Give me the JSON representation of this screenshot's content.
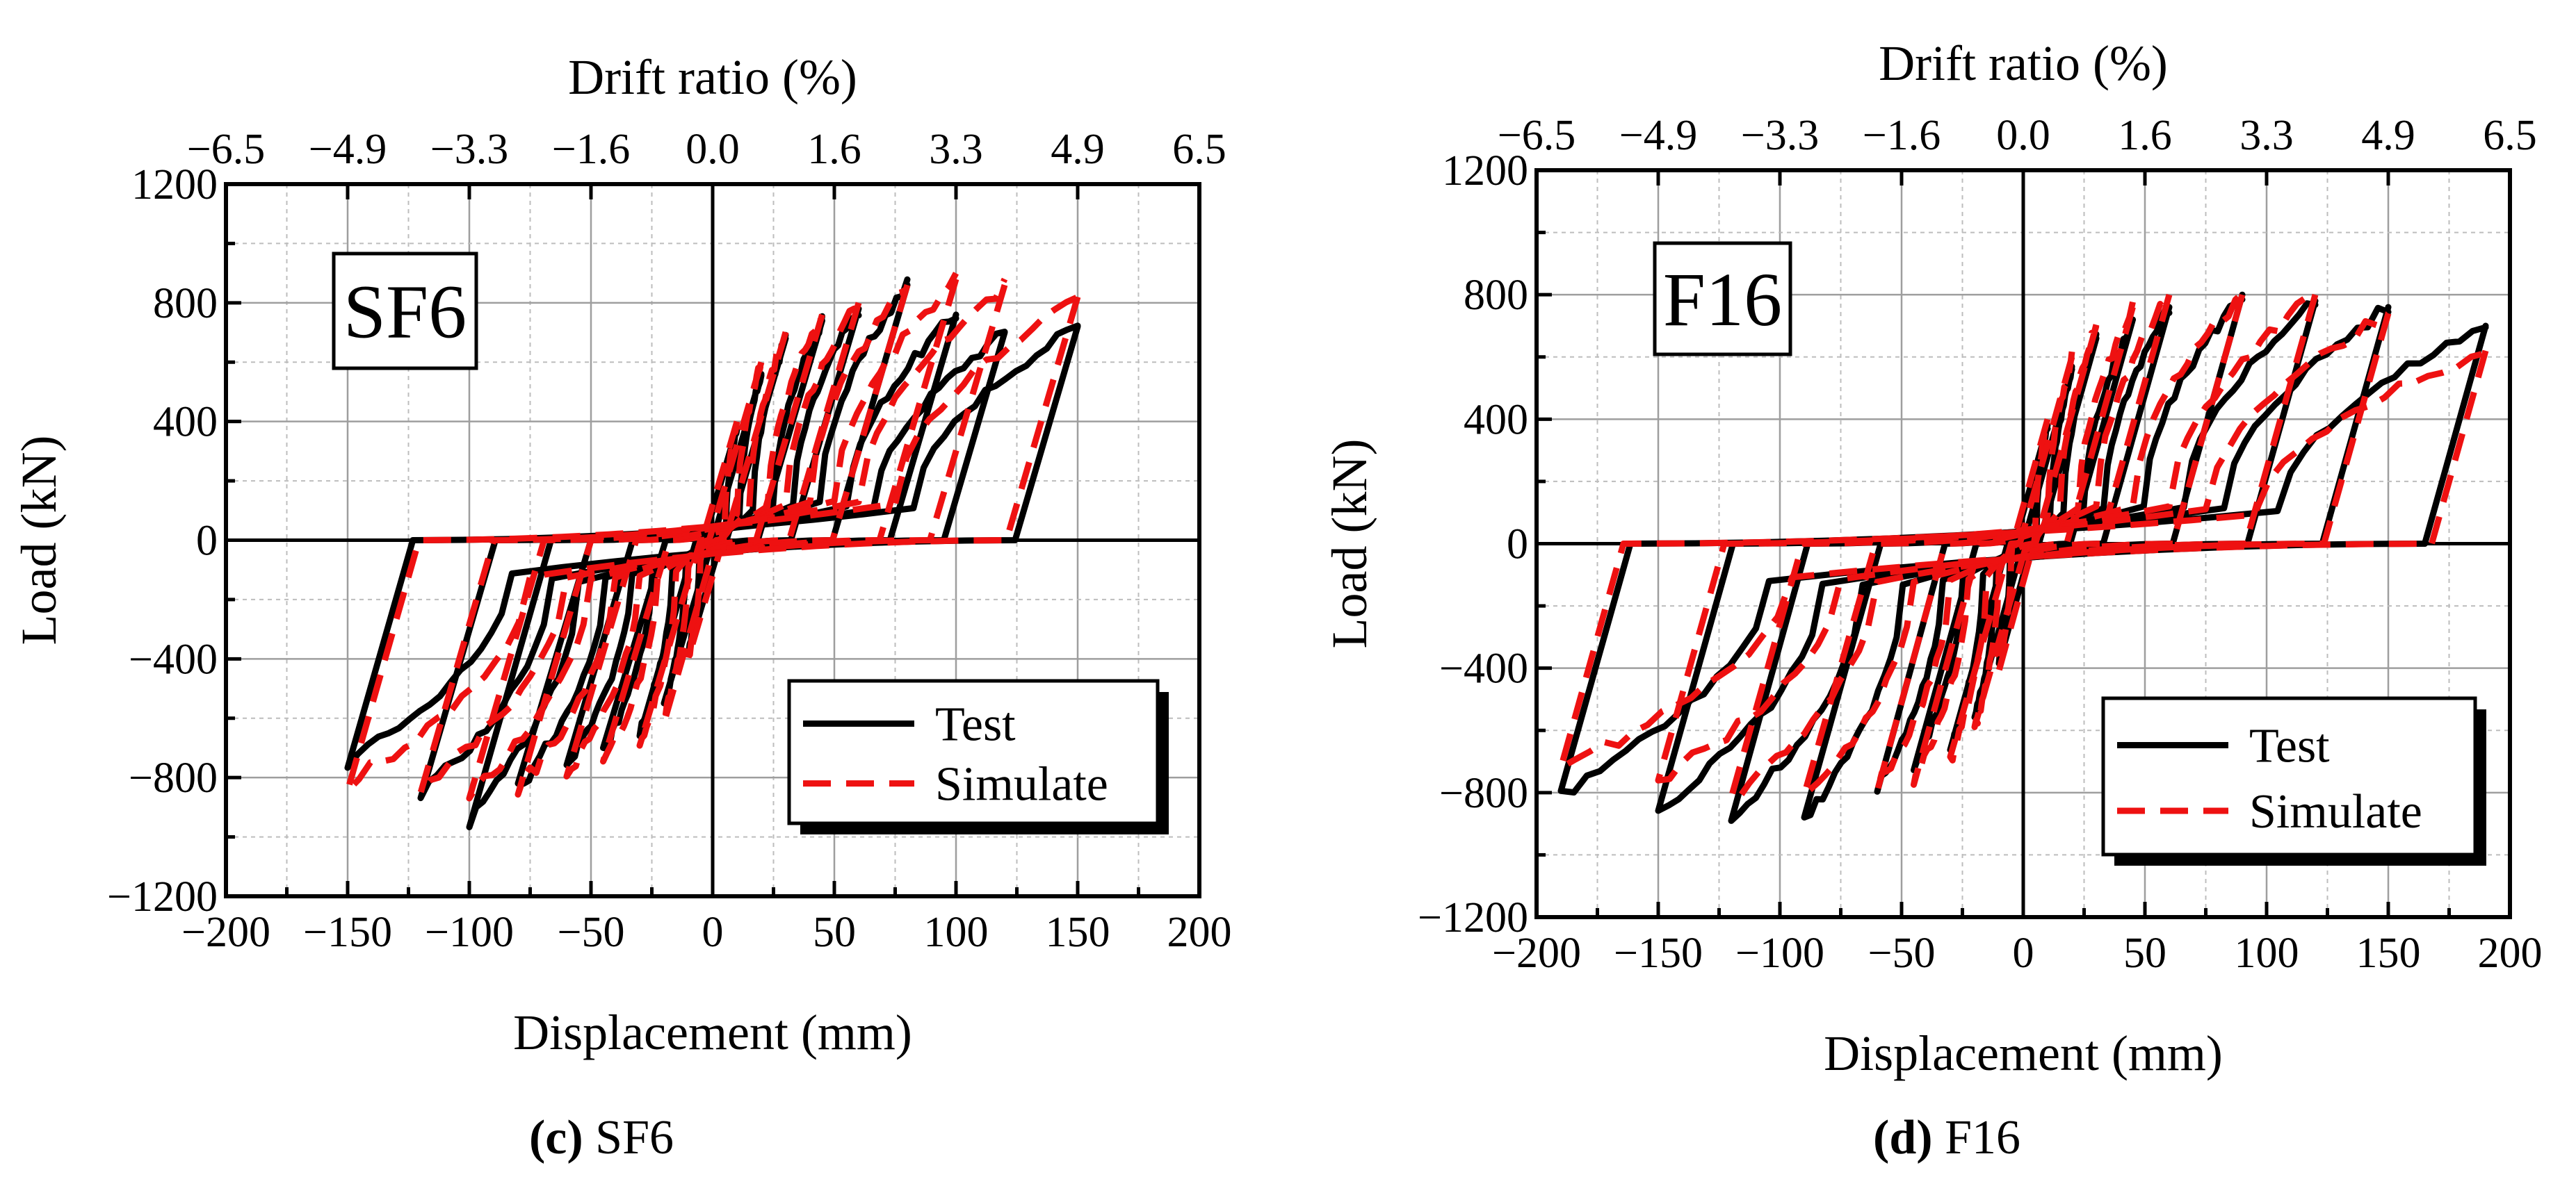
{
  "chart_data": [
    {
      "type": "line",
      "panel_letter": "c",
      "caption": " SF6",
      "tag": "SF6",
      "xlabel": "Displacement (mm)",
      "ylabel": "Load (kN)",
      "top_xlabel": "Drift ratio (%)",
      "xlim": [
        -200,
        200
      ],
      "ylim": [
        -1200,
        1200
      ],
      "xticks": [
        "−200",
        "−150",
        "−100",
        "−50",
        "0",
        "50",
        "100",
        "150",
        "200"
      ],
      "yticks": [
        "−1200",
        "−800",
        "−400",
        "0",
        "400",
        "800",
        "1200"
      ],
      "top_ticks": [
        "−6.5",
        "−4.9",
        "−3.3",
        "−1.6",
        "0.0",
        "1.6",
        "3.3",
        "4.9",
        "6.5"
      ],
      "legend": {
        "position": "bottom-right",
        "entries": [
          "Test",
          "Simulate"
        ]
      },
      "series": [
        {
          "name": "Test",
          "style": "solid",
          "color": "#000000",
          "amplitudes": [
            10,
            20,
            30,
            45,
            60,
            80,
            100,
            120,
            150
          ],
          "peaks_pos": [
            380,
            560,
            680,
            740,
            780,
            860,
            760,
            700,
            720
          ],
          "peaks_neg": [
            -380,
            -560,
            -650,
            -720,
            -760,
            -840,
            -940,
            -860,
            -750
          ]
        },
        {
          "name": "Simulate",
          "style": "dashed",
          "color": "#ee1111",
          "amplitudes": [
            10,
            20,
            30,
            45,
            60,
            80,
            100,
            120,
            150
          ],
          "peaks_pos": [
            400,
            600,
            700,
            760,
            800,
            860,
            880,
            860,
            820
          ],
          "peaks_neg": [
            -400,
            -600,
            -700,
            -760,
            -800,
            -840,
            -860,
            -840,
            -820
          ]
        }
      ]
    },
    {
      "type": "line",
      "panel_letter": "d",
      "caption": " F16",
      "tag": "F16",
      "xlabel": "Displacement (mm)",
      "ylabel": "Load (kN)",
      "top_xlabel": "Drift ratio (%)",
      "xlim": [
        -200,
        200
      ],
      "ylim": [
        -1200,
        1200
      ],
      "xticks": [
        "−200",
        "−150",
        "−100",
        "−50",
        "0",
        "50",
        "100",
        "150",
        "200"
      ],
      "yticks": [
        "−1200",
        "−800",
        "−400",
        "0",
        "400",
        "800",
        "1200"
      ],
      "top_ticks": [
        "−6.5",
        "−4.9",
        "−3.3",
        "−1.6",
        "0.0",
        "1.6",
        "3.3",
        "4.9",
        "6.5"
      ],
      "legend": {
        "position": "bottom-right",
        "entries": [
          "Test",
          "Simulate"
        ]
      },
      "series": [
        {
          "name": "Test",
          "style": "solid",
          "color": "#000000",
          "amplitudes": [
            10,
            20,
            30,
            45,
            60,
            90,
            120,
            150,
            190
          ],
          "peaks_pos": [
            380,
            560,
            660,
            720,
            760,
            800,
            780,
            760,
            700
          ],
          "peaks_neg": [
            -380,
            -560,
            -660,
            -720,
            -780,
            -880,
            -880,
            -860,
            -800
          ]
        },
        {
          "name": "Simulate",
          "style": "dashed",
          "color": "#ee1111",
          "amplitudes": [
            10,
            20,
            30,
            45,
            60,
            90,
            120,
            150,
            190
          ],
          "peaks_pos": [
            400,
            600,
            700,
            760,
            800,
            800,
            800,
            740,
            620
          ],
          "peaks_neg": [
            -400,
            -600,
            -700,
            -760,
            -780,
            -820,
            -820,
            -760,
            -720
          ]
        }
      ]
    }
  ]
}
